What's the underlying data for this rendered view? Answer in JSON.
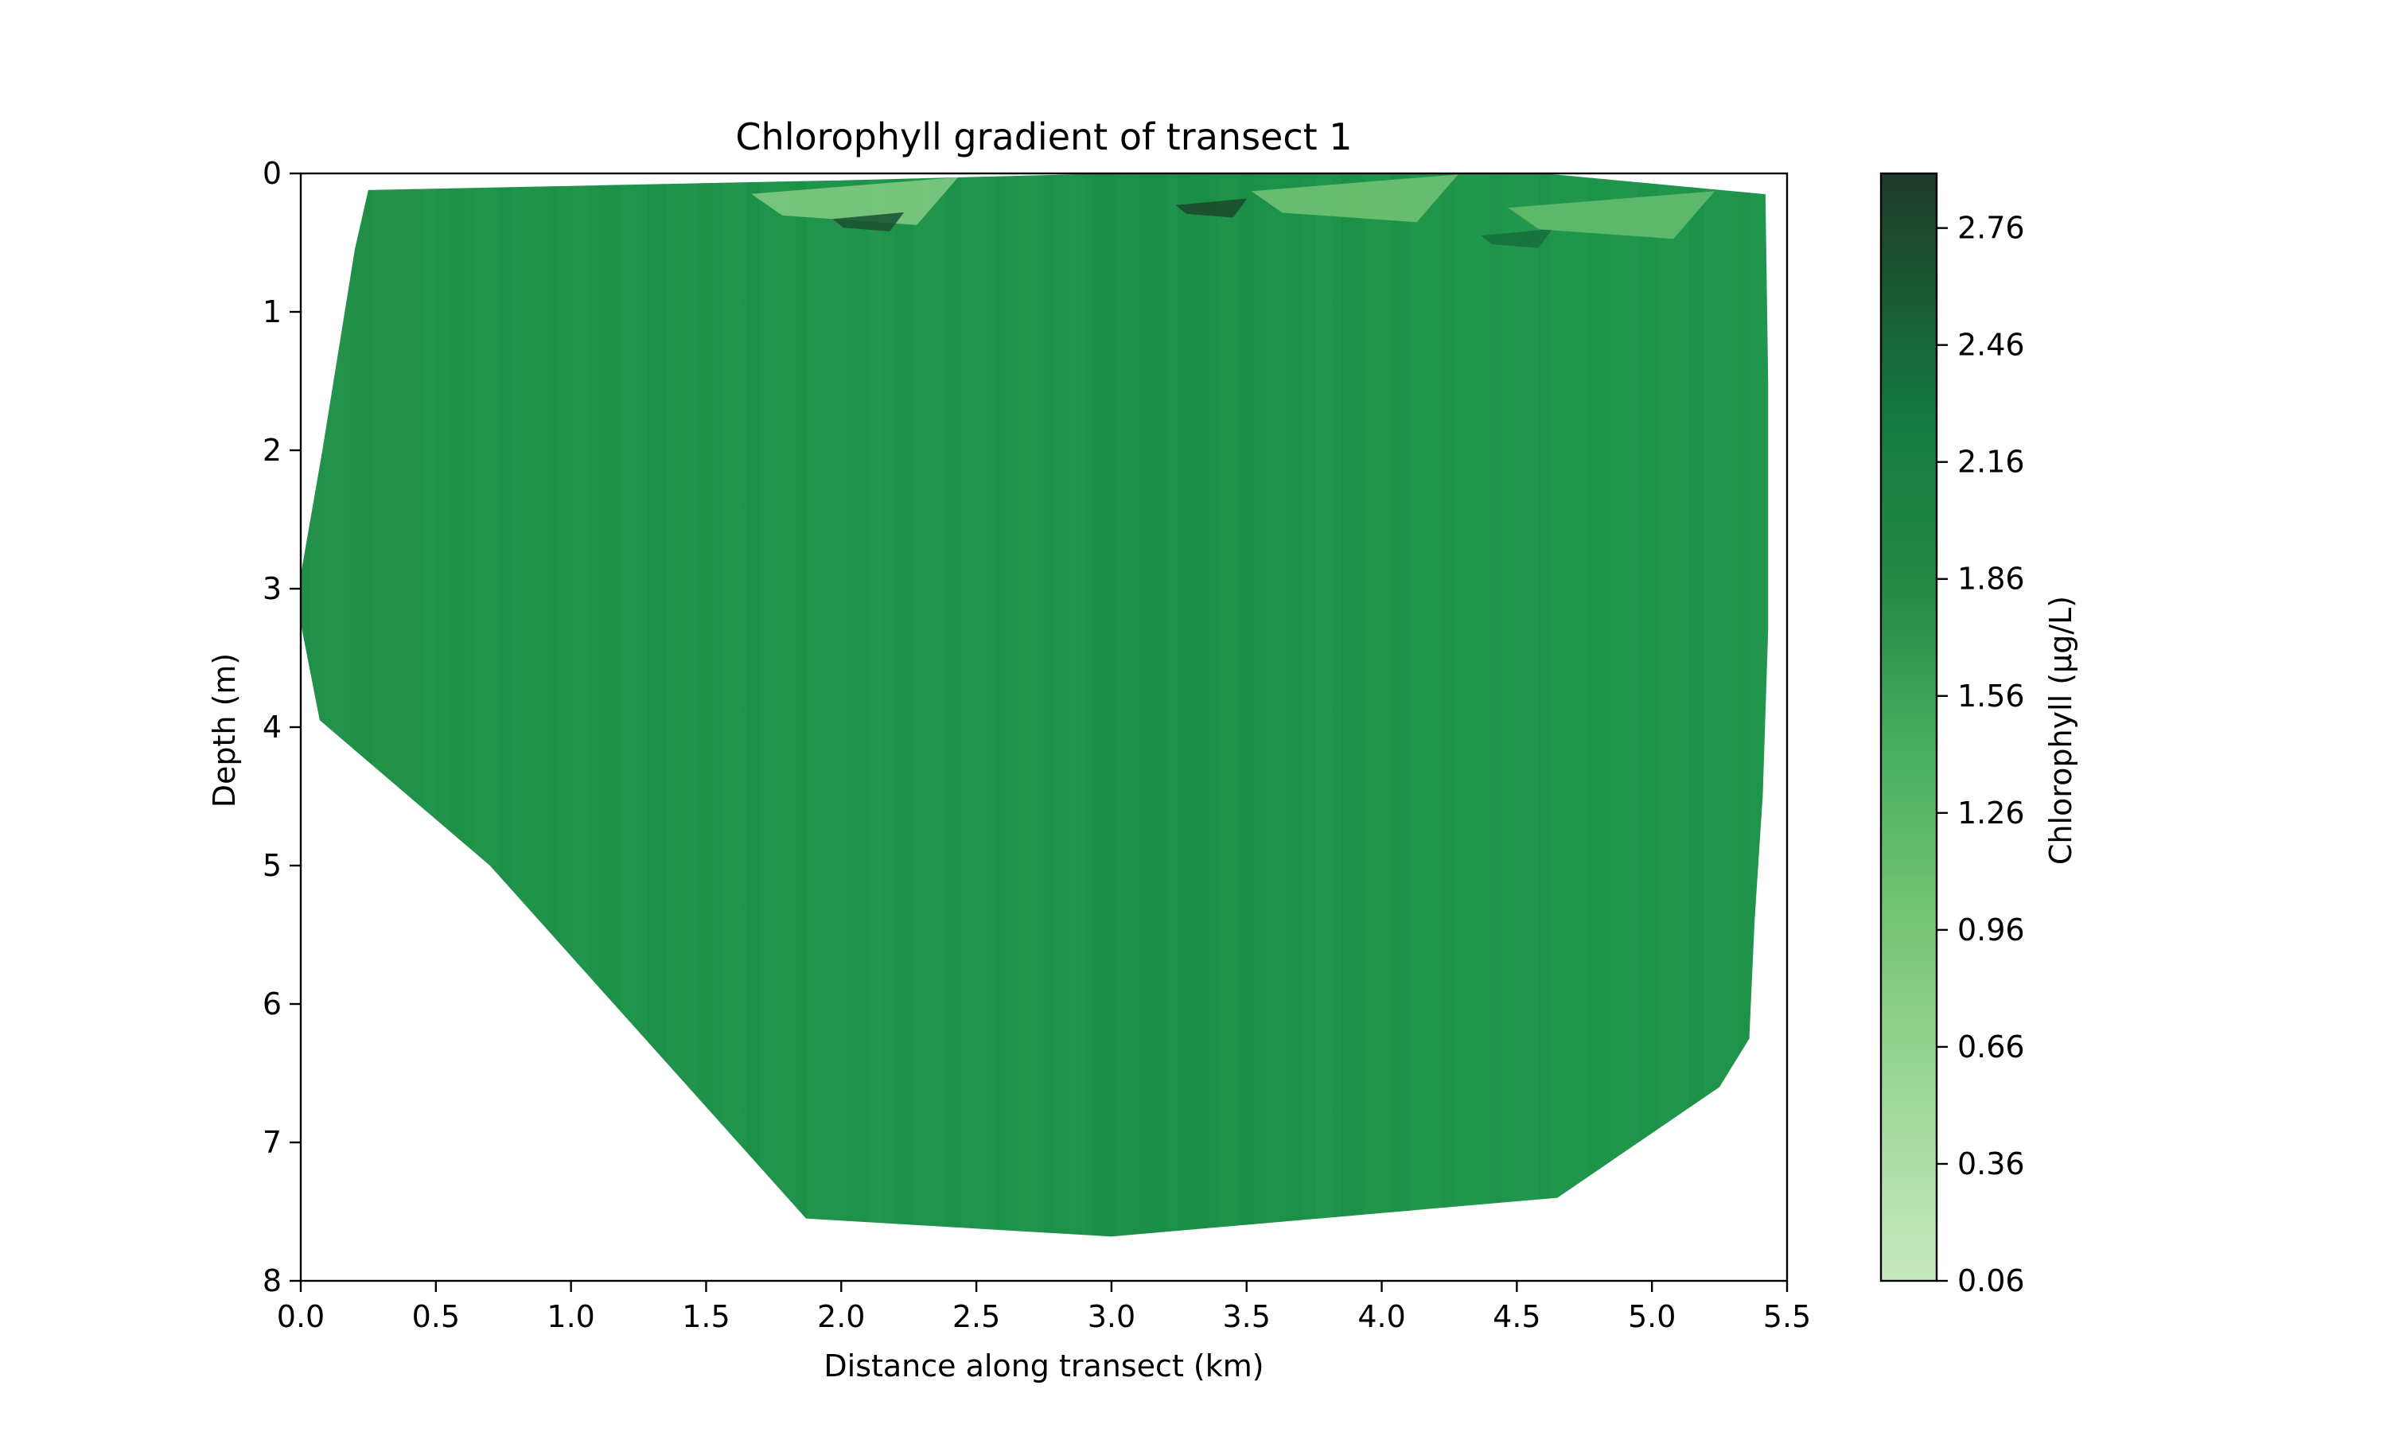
{
  "chart_data": {
    "type": "heatmap",
    "title": "Chlorophyll gradient of transect 1",
    "xlabel": "Distance along transect (km)",
    "ylabel": "Depth (m)",
    "xlim": [
      0.0,
      5.5
    ],
    "ylim": [
      8,
      0
    ],
    "y_inverted": true,
    "xticks": [
      "0.0",
      "0.5",
      "1.0",
      "1.5",
      "2.0",
      "2.5",
      "3.0",
      "3.5",
      "4.0",
      "4.5",
      "5.0",
      "5.5"
    ],
    "yticks": [
      "0",
      "1",
      "2",
      "3",
      "4",
      "5",
      "6",
      "7",
      "8"
    ],
    "grid": false,
    "colormap": "Greens",
    "colorbar": {
      "label": "Chlorophyll (µg/L)",
      "range": [
        0.06,
        2.9
      ],
      "ticks": [
        "0.06",
        "0.36",
        "0.66",
        "0.96",
        "1.26",
        "1.56",
        "1.86",
        "2.16",
        "2.46",
        "2.76"
      ]
    },
    "field": {
      "dominant_value": 1.6,
      "description_range": [
        1.4,
        1.9
      ],
      "outline_km_m": [
        [
          0.25,
          0.12
        ],
        [
          1.0,
          0.09
        ],
        [
          2.0,
          0.05
        ],
        [
          3.0,
          0.0
        ],
        [
          4.0,
          0.0
        ],
        [
          4.6,
          0.0
        ],
        [
          5.42,
          0.15
        ],
        [
          5.43,
          1.5
        ],
        [
          5.43,
          3.3
        ],
        [
          5.41,
          4.5
        ],
        [
          5.38,
          5.4
        ],
        [
          5.36,
          6.25
        ],
        [
          5.25,
          6.6
        ],
        [
          5.1,
          6.8
        ],
        [
          4.65,
          7.4
        ],
        [
          3.0,
          7.68
        ],
        [
          1.87,
          7.55
        ],
        [
          0.7,
          5.0
        ],
        [
          0.07,
          3.95
        ],
        [
          0.0,
          3.25
        ],
        [
          0.0,
          2.9
        ],
        [
          0.08,
          2.0
        ],
        [
          0.2,
          0.55
        ]
      ],
      "surface_patches": [
        {
          "x": 3.9,
          "depth": 0.18,
          "value": 1.1
        },
        {
          "x": 2.05,
          "depth": 0.2,
          "value": 0.9
        },
        {
          "x": 2.1,
          "depth": 0.35,
          "value": 2.7
        },
        {
          "x": 3.37,
          "depth": 0.25,
          "value": 2.8
        },
        {
          "x": 4.5,
          "depth": 0.47,
          "value": 2.4
        },
        {
          "x": 4.85,
          "depth": 0.3,
          "value": 1.2
        }
      ]
    }
  }
}
